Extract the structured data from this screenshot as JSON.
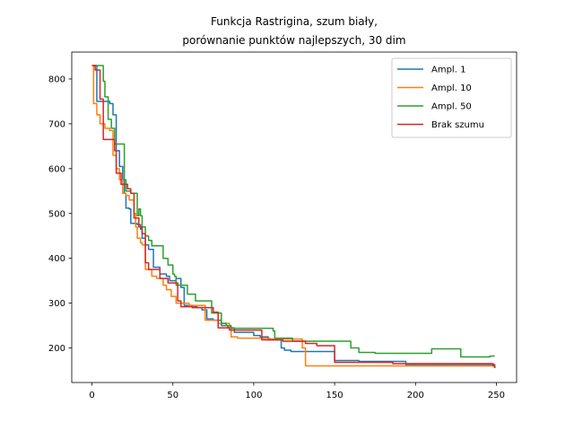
{
  "chart_data": {
    "type": "line",
    "title": [
      "Funkcja Rastrigina, szum biały,",
      "porównanie punktów najlepszych, 30 dim"
    ],
    "xlabel": "",
    "ylabel": "",
    "xlim": [
      -12.5,
      262.5
    ],
    "ylim": [
      123,
      860
    ],
    "xticks": [
      0,
      50,
      100,
      150,
      200,
      250
    ],
    "yticks": [
      200,
      300,
      400,
      500,
      600,
      700,
      800
    ],
    "grid": false,
    "legend_position": "top-right",
    "series": [
      {
        "name": "Ampl. 1",
        "color": "#1f77b4",
        "points": [
          [
            0,
            830
          ],
          [
            3,
            830
          ],
          [
            3,
            750
          ],
          [
            11,
            750
          ],
          [
            11,
            745
          ],
          [
            13,
            745
          ],
          [
            13,
            720
          ],
          [
            15,
            720
          ],
          [
            15,
            640
          ],
          [
            17,
            640
          ],
          [
            17,
            605
          ],
          [
            19,
            605
          ],
          [
            19,
            575
          ],
          [
            20,
            575
          ],
          [
            20,
            545
          ],
          [
            21,
            545
          ],
          [
            21,
            512
          ],
          [
            23,
            512
          ],
          [
            23,
            510
          ],
          [
            24,
            510
          ],
          [
            24,
            478
          ],
          [
            28,
            478
          ],
          [
            28,
            475
          ],
          [
            30,
            475
          ],
          [
            30,
            465
          ],
          [
            31,
            465
          ],
          [
            31,
            445
          ],
          [
            33,
            445
          ],
          [
            33,
            430
          ],
          [
            35,
            430
          ],
          [
            35,
            420
          ],
          [
            38,
            420
          ],
          [
            38,
            380
          ],
          [
            42,
            380
          ],
          [
            42,
            365
          ],
          [
            46,
            365
          ],
          [
            46,
            360
          ],
          [
            48,
            360
          ],
          [
            48,
            350
          ],
          [
            52,
            350
          ],
          [
            52,
            355
          ],
          [
            55,
            355
          ],
          [
            55,
            335
          ],
          [
            57,
            335
          ],
          [
            57,
            295
          ],
          [
            62,
            295
          ],
          [
            62,
            292
          ],
          [
            65,
            292
          ],
          [
            65,
            290
          ],
          [
            68,
            290
          ],
          [
            68,
            285
          ],
          [
            71,
            285
          ],
          [
            71,
            265
          ],
          [
            75,
            265
          ],
          [
            75,
            262
          ],
          [
            80,
            262
          ],
          [
            80,
            250
          ],
          [
            84,
            250
          ],
          [
            84,
            245
          ],
          [
            88,
            245
          ],
          [
            88,
            235
          ],
          [
            100,
            235
          ],
          [
            100,
            228
          ],
          [
            104,
            228
          ],
          [
            104,
            225
          ],
          [
            109,
            225
          ],
          [
            109,
            218
          ],
          [
            117,
            218
          ],
          [
            117,
            200
          ],
          [
            119,
            200
          ],
          [
            119,
            195
          ],
          [
            123,
            195
          ],
          [
            123,
            192
          ],
          [
            150,
            192
          ],
          [
            150,
            172
          ],
          [
            165,
            172
          ],
          [
            165,
            170
          ],
          [
            194,
            170
          ],
          [
            194,
            163
          ],
          [
            249,
            163
          ],
          [
            249,
            155
          ]
        ]
      },
      {
        "name": "Ampl. 10",
        "color": "#ff7f0e",
        "points": [
          [
            0,
            830
          ],
          [
            1,
            830
          ],
          [
            1,
            745
          ],
          [
            3,
            745
          ],
          [
            3,
            720
          ],
          [
            5,
            720
          ],
          [
            5,
            700
          ],
          [
            8,
            700
          ],
          [
            8,
            690
          ],
          [
            11,
            690
          ],
          [
            11,
            685
          ],
          [
            13,
            685
          ],
          [
            13,
            630
          ],
          [
            15,
            630
          ],
          [
            15,
            600
          ],
          [
            17,
            600
          ],
          [
            17,
            575
          ],
          [
            19,
            575
          ],
          [
            19,
            545
          ],
          [
            21,
            545
          ],
          [
            21,
            540
          ],
          [
            23,
            540
          ],
          [
            23,
            530
          ],
          [
            26,
            530
          ],
          [
            26,
            500
          ],
          [
            27,
            500
          ],
          [
            27,
            470
          ],
          [
            28,
            470
          ],
          [
            28,
            445
          ],
          [
            30,
            445
          ],
          [
            30,
            435
          ],
          [
            31,
            435
          ],
          [
            31,
            430
          ],
          [
            33,
            430
          ],
          [
            33,
            375
          ],
          [
            37,
            375
          ],
          [
            37,
            360
          ],
          [
            40,
            360
          ],
          [
            40,
            355
          ],
          [
            44,
            355
          ],
          [
            44,
            340
          ],
          [
            46,
            340
          ],
          [
            46,
            330
          ],
          [
            49,
            330
          ],
          [
            49,
            315
          ],
          [
            52,
            315
          ],
          [
            52,
            300
          ],
          [
            60,
            300
          ],
          [
            60,
            295
          ],
          [
            70,
            295
          ],
          [
            70,
            262
          ],
          [
            78,
            262
          ],
          [
            78,
            255
          ],
          [
            85,
            255
          ],
          [
            85,
            245
          ],
          [
            86,
            245
          ],
          [
            86,
            225
          ],
          [
            90,
            225
          ],
          [
            90,
            222
          ],
          [
            110,
            222
          ],
          [
            110,
            220
          ],
          [
            130,
            220
          ],
          [
            130,
            200
          ],
          [
            132,
            200
          ],
          [
            132,
            160
          ],
          [
            249,
            160
          ],
          [
            249,
            162
          ]
        ]
      },
      {
        "name": "Ampl. 50",
        "color": "#2ca02c",
        "points": [
          [
            0,
            830
          ],
          [
            7,
            830
          ],
          [
            7,
            795
          ],
          [
            8,
            795
          ],
          [
            8,
            760
          ],
          [
            10,
            760
          ],
          [
            10,
            710
          ],
          [
            12,
            710
          ],
          [
            12,
            690
          ],
          [
            14,
            690
          ],
          [
            14,
            655
          ],
          [
            20,
            655
          ],
          [
            20,
            575
          ],
          [
            21,
            575
          ],
          [
            21,
            550
          ],
          [
            24,
            550
          ],
          [
            24,
            545
          ],
          [
            28,
            545
          ],
          [
            28,
            495
          ],
          [
            29,
            495
          ],
          [
            29,
            510
          ],
          [
            30,
            510
          ],
          [
            30,
            495
          ],
          [
            31,
            495
          ],
          [
            31,
            470
          ],
          [
            33,
            470
          ],
          [
            33,
            450
          ],
          [
            35,
            450
          ],
          [
            35,
            440
          ],
          [
            37,
            440
          ],
          [
            37,
            428
          ],
          [
            44,
            428
          ],
          [
            44,
            400
          ],
          [
            47,
            400
          ],
          [
            47,
            385
          ],
          [
            50,
            385
          ],
          [
            50,
            365
          ],
          [
            51,
            365
          ],
          [
            51,
            360
          ],
          [
            52,
            360
          ],
          [
            52,
            340
          ],
          [
            59,
            340
          ],
          [
            59,
            320
          ],
          [
            64,
            320
          ],
          [
            64,
            305
          ],
          [
            74,
            305
          ],
          [
            74,
            278
          ],
          [
            80,
            278
          ],
          [
            80,
            255
          ],
          [
            83,
            255
          ],
          [
            83,
            250
          ],
          [
            86,
            250
          ],
          [
            86,
            244
          ],
          [
            112,
            244
          ],
          [
            112,
            238
          ],
          [
            113,
            238
          ],
          [
            113,
            222
          ],
          [
            124,
            222
          ],
          [
            124,
            215
          ],
          [
            160,
            215
          ],
          [
            160,
            200
          ],
          [
            165,
            200
          ],
          [
            165,
            190
          ],
          [
            175,
            190
          ],
          [
            175,
            188
          ],
          [
            210,
            188
          ],
          [
            210,
            198
          ],
          [
            228,
            198
          ],
          [
            228,
            180
          ],
          [
            246,
            180
          ],
          [
            246,
            182
          ],
          [
            249,
            182
          ]
        ]
      },
      {
        "name": "Brak szumu",
        "color": "#d62728",
        "points": [
          [
            0,
            830
          ],
          [
            2,
            830
          ],
          [
            2,
            820
          ],
          [
            5,
            820
          ],
          [
            5,
            755
          ],
          [
            7,
            755
          ],
          [
            7,
            665
          ],
          [
            14,
            665
          ],
          [
            14,
            640
          ],
          [
            15,
            640
          ],
          [
            15,
            590
          ],
          [
            18,
            590
          ],
          [
            18,
            565
          ],
          [
            22,
            565
          ],
          [
            22,
            555
          ],
          [
            24,
            555
          ],
          [
            24,
            545
          ],
          [
            26,
            545
          ],
          [
            26,
            490
          ],
          [
            29,
            490
          ],
          [
            29,
            470
          ],
          [
            31,
            470
          ],
          [
            31,
            455
          ],
          [
            33,
            455
          ],
          [
            33,
            390
          ],
          [
            35,
            390
          ],
          [
            35,
            375
          ],
          [
            42,
            375
          ],
          [
            42,
            355
          ],
          [
            47,
            355
          ],
          [
            47,
            345
          ],
          [
            53,
            345
          ],
          [
            53,
            305
          ],
          [
            55,
            305
          ],
          [
            55,
            292
          ],
          [
            62,
            292
          ],
          [
            62,
            290
          ],
          [
            75,
            290
          ],
          [
            75,
            280
          ],
          [
            78,
            280
          ],
          [
            78,
            245
          ],
          [
            85,
            245
          ],
          [
            85,
            240
          ],
          [
            105,
            240
          ],
          [
            105,
            218
          ],
          [
            118,
            218
          ],
          [
            118,
            215
          ],
          [
            132,
            215
          ],
          [
            132,
            210
          ],
          [
            139,
            210
          ],
          [
            139,
            205
          ],
          [
            150,
            205
          ],
          [
            150,
            168
          ],
          [
            186,
            168
          ],
          [
            186,
            165
          ],
          [
            248,
            165
          ],
          [
            248,
            160
          ],
          [
            249,
            160
          ],
          [
            249,
            155
          ]
        ]
      }
    ]
  }
}
